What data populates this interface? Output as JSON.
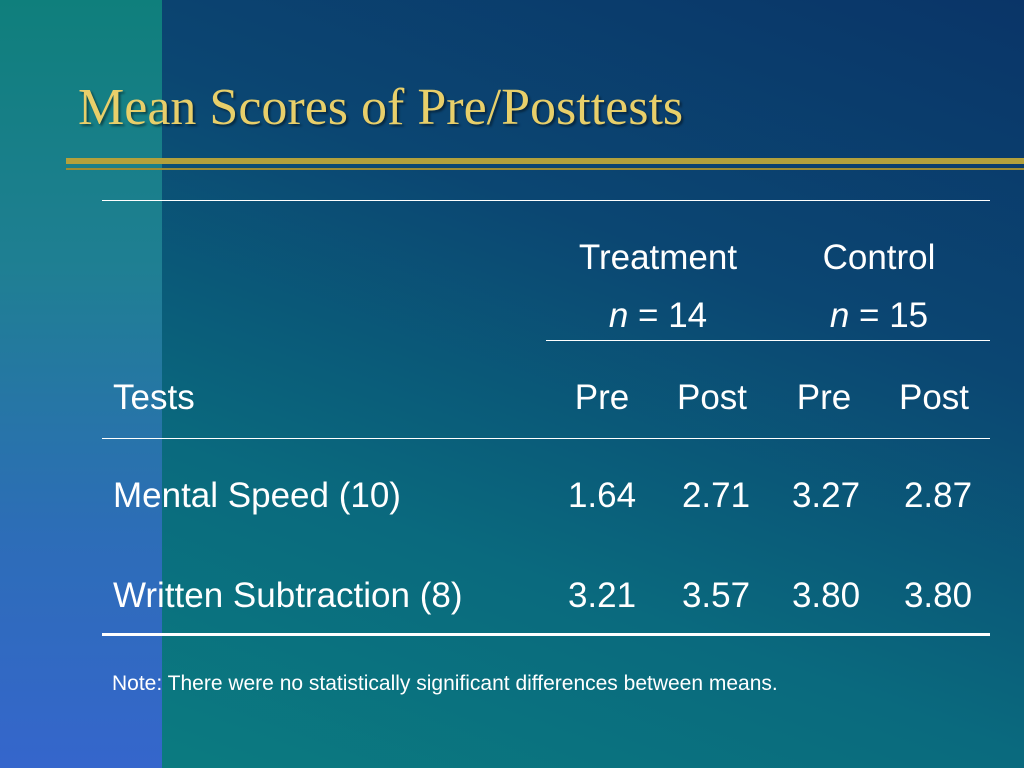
{
  "slide": {
    "title": "Mean Scores of Pre/Posttests"
  },
  "table": {
    "groups": [
      {
        "name": "Treatment",
        "n_label": "n",
        "n_value": "= 14"
      },
      {
        "name": "Control",
        "n_label": "n",
        "n_value": "= 15"
      }
    ],
    "column_header": "Tests",
    "subheaders": [
      "Pre",
      "Post",
      "Pre",
      "Post"
    ],
    "rows": [
      {
        "label": "Mental Speed (10)",
        "values": [
          "1.64",
          "2.71",
          "3.27",
          "2.87"
        ]
      },
      {
        "label": "Written Subtraction (8)",
        "values": [
          "3.21",
          "3.57",
          "3.80",
          "3.80"
        ]
      }
    ]
  },
  "note": "Note: There were no statistically significant differences between means.",
  "colors": {
    "title": "#e8cf6a",
    "accent_rule": "#b3a13c",
    "text": "#ffffff"
  }
}
